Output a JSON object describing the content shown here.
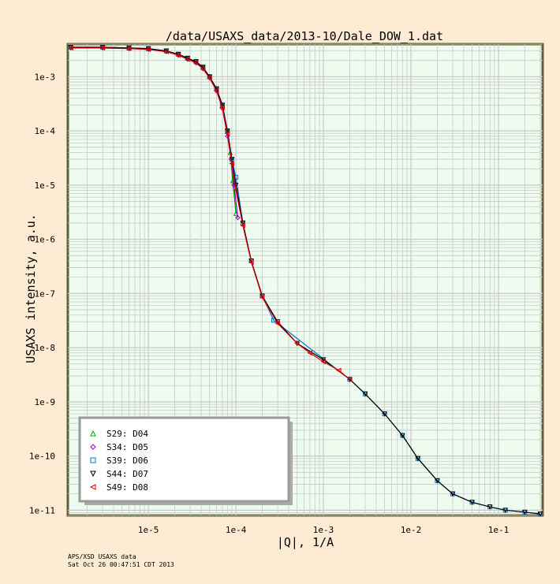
{
  "chart_data": {
    "type": "scatter",
    "title": "/data/USAXS_data/2013-10/Dale_DOW_1.dat",
    "xlabel": "|Q|, 1/A",
    "ylabel": "USAXS intensity, a.u.",
    "xscale": "log",
    "yscale": "log",
    "xlim": [
      1.2e-06,
      0.32
    ],
    "ylim": [
      8e-12,
      0.004
    ],
    "grid": true,
    "legend_position": "bottom-left",
    "x_tick_labels": [
      "1e-5",
      "1e-4",
      "1e-3",
      "1e-2",
      "1e-1"
    ],
    "y_tick_labels": [
      "1e-3",
      "1e-4",
      "1e-5",
      "1e-6",
      "1e-7",
      "1e-8",
      "1e-9",
      "1e-10",
      "1e-11"
    ],
    "series": [
      {
        "name": "S29: D04",
        "color": "#00aa00",
        "marker": "triangle-up",
        "x": [
          1.3e-06,
          3e-06,
          6e-06,
          1e-05,
          1.6e-05,
          2.2e-05,
          2.8e-05,
          3.5e-05,
          4.2e-05,
          5e-05,
          6e-05,
          7e-05,
          8e-05,
          8.6e-05,
          9.2e-05,
          0.0001
        ],
        "y": [
          0.0035,
          0.0035,
          0.0034,
          0.0033,
          0.003,
          0.0026,
          0.0022,
          0.0019,
          0.0015,
          0.001,
          0.0006,
          0.0003,
          0.0001,
          4e-05,
          1.2e-05,
          3e-06
        ]
      },
      {
        "name": "S34: D05",
        "color": "#9900cc",
        "marker": "diamond",
        "x": [
          1.3e-06,
          3e-06,
          6e-06,
          1e-05,
          1.6e-05,
          2.2e-05,
          2.8e-05,
          3.5e-05,
          4.2e-05,
          5e-05,
          6e-05,
          7e-05,
          8e-05,
          8.8e-05,
          9.5e-05,
          0.000105
        ],
        "y": [
          0.0034,
          0.0034,
          0.0033,
          0.0032,
          0.0029,
          0.0025,
          0.0021,
          0.0018,
          0.0014,
          0.00095,
          0.00055,
          0.00026,
          8e-05,
          3e-05,
          1e-05,
          2.5e-06
        ]
      },
      {
        "name": "S39: D06",
        "color": "#0077cc",
        "marker": "square",
        "x": [
          1.3e-06,
          3e-06,
          6e-06,
          1e-05,
          1.6e-05,
          2.2e-05,
          2.8e-05,
          3.5e-05,
          4.2e-05,
          5e-05,
          6e-05,
          7e-05,
          8e-05,
          9e-05,
          0.0001,
          0.00012,
          0.00015,
          0.0002,
          0.00027,
          0.002,
          0.003,
          0.005,
          0.008,
          0.012,
          0.02,
          0.03,
          0.05,
          0.08,
          0.12,
          0.2,
          0.3
        ],
        "y": [
          0.0035,
          0.0035,
          0.0034,
          0.0033,
          0.003,
          0.0026,
          0.0022,
          0.0019,
          0.0015,
          0.001,
          0.0006,
          0.0003,
          0.0001,
          3e-05,
          1.4e-05,
          2e-06,
          4e-07,
          9e-08,
          3.2e-08,
          2.6e-09,
          1.4e-09,
          6e-10,
          2.4e-10,
          9e-11,
          3.5e-11,
          2e-11,
          1.4e-11,
          1.15e-11,
          1e-11,
          9.2e-12,
          8.5e-12
        ]
      },
      {
        "name": "S44: D07",
        "color": "#000000",
        "marker": "triangle-down",
        "x": [
          1.3e-06,
          3e-06,
          6e-06,
          1e-05,
          1.6e-05,
          2.2e-05,
          2.8e-05,
          3.5e-05,
          4.2e-05,
          5e-05,
          6e-05,
          7e-05,
          8e-05,
          9e-05,
          0.0001,
          0.00012,
          0.00015,
          0.0002,
          0.0003,
          0.0005,
          0.001,
          0.002,
          0.003,
          0.005,
          0.008,
          0.012,
          0.02,
          0.03,
          0.05,
          0.08,
          0.12,
          0.2,
          0.3
        ],
        "y": [
          0.0035,
          0.0035,
          0.0034,
          0.0033,
          0.003,
          0.0026,
          0.0022,
          0.0019,
          0.0015,
          0.001,
          0.0006,
          0.0003,
          0.0001,
          3e-05,
          1e-05,
          2e-06,
          4e-07,
          9e-08,
          3e-08,
          1.2e-08,
          6e-09,
          2.6e-09,
          1.4e-09,
          6e-10,
          2.4e-10,
          9e-11,
          3.5e-11,
          2e-11,
          1.4e-11,
          1.15e-11,
          1e-11,
          9.2e-12,
          8.5e-12
        ]
      },
      {
        "name": "S49: D08",
        "color": "#dd0000",
        "marker": "triangle-left",
        "x": [
          1.3e-06,
          3e-06,
          6e-06,
          1e-05,
          1.6e-05,
          2.2e-05,
          2.8e-05,
          3.5e-05,
          4.2e-05,
          5e-05,
          6e-05,
          7e-05,
          8e-05,
          9e-05,
          0.0001,
          0.00012,
          0.00015,
          0.0002,
          0.0003,
          0.0005,
          0.0007,
          0.001,
          0.0015,
          0.002
        ],
        "y": [
          0.0034,
          0.0034,
          0.0033,
          0.0032,
          0.0029,
          0.0025,
          0.0021,
          0.0018,
          0.0014,
          0.00095,
          0.00055,
          0.00027,
          9e-05,
          2.5e-05,
          8e-06,
          1.8e-06,
          3.8e-07,
          8.5e-08,
          2.8e-08,
          1.2e-08,
          8e-09,
          5.5e-09,
          3.8e-09,
          2.6e-09
        ]
      }
    ]
  },
  "footer": {
    "line1": "APS/XSD USAXS data",
    "line2": "Sat Oct 26 00:47:51 CDT 2013"
  },
  "colors": {
    "background": "#fdebd3",
    "plot_area": "#eefcf0",
    "plot_border": "#606030",
    "grid": "#c8c8c8",
    "legend_bg": "#ffffff",
    "legend_border": "#999999"
  }
}
